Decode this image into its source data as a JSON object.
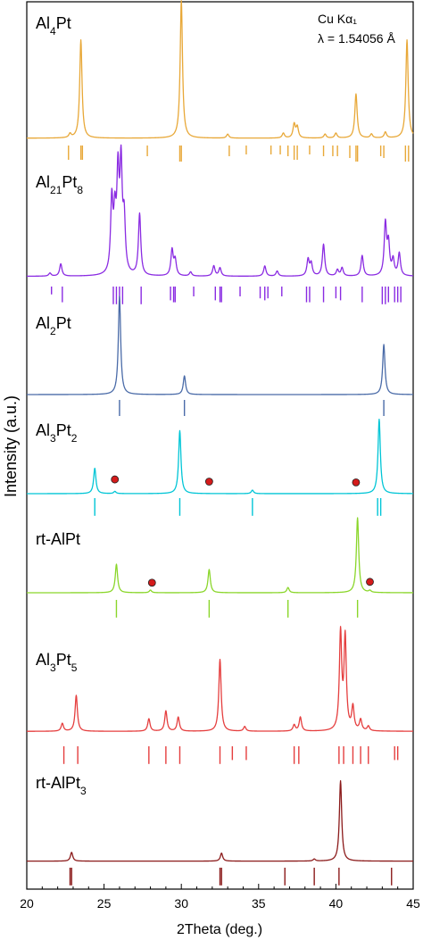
{
  "chart_data": {
    "type": "line",
    "xlabel": "2Theta (deg.)",
    "ylabel": "Intensity (a.u.)",
    "xlim": [
      20,
      45
    ],
    "x_ticks": [
      20,
      25,
      30,
      35,
      40,
      45
    ],
    "annotation": {
      "line1": "Cu Kα₁",
      "line2": "λ = 1.54056 Å"
    },
    "series": [
      {
        "name": "Al4Pt",
        "name_parts": [
          [
            "Al",
            ""
          ],
          [
            "4",
            "sub"
          ],
          [
            "Pt",
            ""
          ]
        ],
        "color": "#E8A838",
        "baseline": 0.2,
        "peaks": [
          [
            22.8,
            0.4
          ],
          [
            23.5,
            10
          ],
          [
            30.0,
            14
          ],
          [
            33.0,
            0.4
          ],
          [
            36.6,
            0.5
          ],
          [
            37.3,
            1.4
          ],
          [
            37.5,
            1.1
          ],
          [
            39.3,
            0.4
          ],
          [
            40.0,
            0.5
          ],
          [
            41.3,
            4.5
          ],
          [
            42.3,
            0.4
          ],
          [
            43.2,
            0.6
          ],
          [
            44.6,
            10
          ]
        ],
        "ticks": [
          [
            22.7,
            0.8
          ],
          [
            23.5,
            0.8
          ],
          [
            23.6,
            0.8
          ],
          [
            27.8,
            0.6
          ],
          [
            29.9,
            0.9
          ],
          [
            30.0,
            0.9
          ],
          [
            33.1,
            0.6
          ],
          [
            34.2,
            0.5
          ],
          [
            35.8,
            0.5
          ],
          [
            36.4,
            0.5
          ],
          [
            36.9,
            0.6
          ],
          [
            37.3,
            0.8
          ],
          [
            37.5,
            0.8
          ],
          [
            38.3,
            0.5
          ],
          [
            39.2,
            0.6
          ],
          [
            39.8,
            0.6
          ],
          [
            40.1,
            0.6
          ],
          [
            40.9,
            0.7
          ],
          [
            41.3,
            0.9
          ],
          [
            41.4,
            0.9
          ],
          [
            42.9,
            0.6
          ],
          [
            43.1,
            0.7
          ],
          [
            44.5,
            0.9
          ],
          [
            44.7,
            0.9
          ]
        ]
      },
      {
        "name": "Al21Pt8",
        "name_parts": [
          [
            "Al",
            ""
          ],
          [
            "21",
            "sub"
          ],
          [
            "Pt",
            ""
          ],
          [
            "8",
            "sub"
          ]
        ],
        "color": "#8A2BE2",
        "baseline": 0.3,
        "peaks": [
          [
            21.5,
            0.3
          ],
          [
            22.2,
            1.2
          ],
          [
            25.5,
            7
          ],
          [
            25.7,
            5
          ],
          [
            25.9,
            9
          ],
          [
            26.1,
            10
          ],
          [
            26.3,
            5
          ],
          [
            27.3,
            6
          ],
          [
            29.4,
            2.5
          ],
          [
            29.6,
            1.5
          ],
          [
            30.6,
            0.4
          ],
          [
            32.1,
            1
          ],
          [
            32.5,
            0.8
          ],
          [
            35.4,
            1
          ],
          [
            36.2,
            0.5
          ],
          [
            38.2,
            1.6
          ],
          [
            38.4,
            1.2
          ],
          [
            39.2,
            3.1
          ],
          [
            40.1,
            0.6
          ],
          [
            40.4,
            0.8
          ],
          [
            41.7,
            2
          ],
          [
            43.2,
            5
          ],
          [
            43.4,
            3
          ],
          [
            43.7,
            1.5
          ],
          [
            44.1,
            2.2
          ]
        ],
        "ticks": [
          [
            21.6,
            0.4
          ],
          [
            22.3,
            0.8
          ],
          [
            25.6,
            0.9
          ],
          [
            25.8,
            0.9
          ],
          [
            26.0,
            0.9
          ],
          [
            26.2,
            0.9
          ],
          [
            27.4,
            0.9
          ],
          [
            29.3,
            0.7
          ],
          [
            29.5,
            0.8
          ],
          [
            29.6,
            0.8
          ],
          [
            30.8,
            0.5
          ],
          [
            32.2,
            0.7
          ],
          [
            32.5,
            0.8
          ],
          [
            32.6,
            0.8
          ],
          [
            33.8,
            0.5
          ],
          [
            35.1,
            0.6
          ],
          [
            35.4,
            0.7
          ],
          [
            35.6,
            0.6
          ],
          [
            36.5,
            0.5
          ],
          [
            38.1,
            0.8
          ],
          [
            38.3,
            0.8
          ],
          [
            39.2,
            0.8
          ],
          [
            40.0,
            0.6
          ],
          [
            40.3,
            0.7
          ],
          [
            41.7,
            0.8
          ],
          [
            43.0,
            0.9
          ],
          [
            43.2,
            0.9
          ],
          [
            43.4,
            0.8
          ],
          [
            43.8,
            0.8
          ],
          [
            44.0,
            0.8
          ],
          [
            44.2,
            0.8
          ]
        ]
      },
      {
        "name": "Al2Pt",
        "name_parts": [
          [
            "Al",
            ""
          ],
          [
            "2",
            "sub"
          ],
          [
            "Pt",
            ""
          ]
        ],
        "color": "#4A6BA8",
        "baseline": 0.0,
        "peaks": [
          [
            26.0,
            10
          ],
          [
            30.2,
            1.9
          ],
          [
            43.1,
            5.1
          ]
        ],
        "ticks": [
          [
            26.0,
            0.9
          ],
          [
            30.2,
            0.9
          ],
          [
            43.1,
            0.9
          ]
        ]
      },
      {
        "name": "Al3Pt2",
        "name_parts": [
          [
            "Al",
            ""
          ],
          [
            "3",
            "sub"
          ],
          [
            "Pt",
            ""
          ],
          [
            "2",
            "sub"
          ]
        ],
        "color": "#00C5D6",
        "baseline": 0.0,
        "peaks": [
          [
            24.4,
            2.9
          ],
          [
            25.7,
            0.25
          ],
          [
            29.9,
            7.2
          ],
          [
            34.6,
            0.4
          ],
          [
            42.8,
            8.5
          ]
        ],
        "ticks": [
          [
            24.4,
            0.9
          ],
          [
            29.9,
            0.9
          ],
          [
            34.6,
            0.9
          ],
          [
            42.7,
            0.9
          ],
          [
            42.9,
            0.9
          ]
        ],
        "markers": [
          [
            25.7,
            0.95
          ],
          [
            31.8,
            0.95
          ],
          [
            41.3,
            0.85
          ]
        ]
      },
      {
        "name": "rt-AlPt",
        "name_parts": [
          [
            "rt-AlPt",
            ""
          ]
        ],
        "color": "#8AD62A",
        "baseline": 0.0,
        "peaks": [
          [
            25.8,
            3.8
          ],
          [
            28.0,
            0.35
          ],
          [
            31.8,
            3.1
          ],
          [
            36.9,
            0.7
          ],
          [
            41.4,
            10
          ],
          [
            42.2,
            0.25
          ]
        ],
        "ticks": [
          [
            25.8,
            0.9
          ],
          [
            31.8,
            0.9
          ],
          [
            36.9,
            0.9
          ],
          [
            41.4,
            0.9
          ]
        ],
        "markers": [
          [
            28.1,
            0.7
          ],
          [
            42.2,
            0.6
          ]
        ]
      },
      {
        "name": "Al3Pt5",
        "name_parts": [
          [
            "Al",
            ""
          ],
          [
            "3",
            "sub"
          ],
          [
            "Pt",
            ""
          ],
          [
            "5",
            "sub"
          ]
        ],
        "color": "#E53E3E",
        "baseline": 0.5,
        "peaks": [
          [
            22.3,
            0.5
          ],
          [
            23.2,
            2.3
          ],
          [
            27.9,
            0.8
          ],
          [
            29.0,
            1.3
          ],
          [
            29.8,
            0.9
          ],
          [
            32.5,
            4.6
          ],
          [
            34.1,
            0.3
          ],
          [
            37.3,
            0.4
          ],
          [
            37.7,
            0.9
          ],
          [
            40.3,
            6.2
          ],
          [
            40.6,
            5.9
          ],
          [
            41.1,
            1.5
          ],
          [
            41.6,
            0.7
          ],
          [
            42.1,
            0.3
          ]
        ],
        "ticks": [
          [
            22.4,
            0.9
          ],
          [
            23.3,
            0.9
          ],
          [
            27.9,
            0.9
          ],
          [
            29.0,
            0.9
          ],
          [
            29.9,
            0.9
          ],
          [
            32.5,
            0.9
          ],
          [
            33.3,
            0.7
          ],
          [
            34.2,
            0.7
          ],
          [
            37.3,
            0.9
          ],
          [
            37.6,
            0.9
          ],
          [
            40.2,
            0.9
          ],
          [
            40.5,
            0.9
          ],
          [
            41.1,
            0.9
          ],
          [
            41.6,
            0.9
          ],
          [
            42.1,
            0.9
          ],
          [
            43.8,
            0.7
          ],
          [
            44.0,
            0.7
          ]
        ]
      },
      {
        "name": "rt-AlPt3",
        "name_parts": [
          [
            "rt-AlPt",
            ""
          ],
          [
            "3",
            "sub"
          ]
        ],
        "color": "#8B1A1A",
        "baseline": 0.15,
        "peaks": [
          [
            22.9,
            1.1
          ],
          [
            32.6,
            1
          ],
          [
            38.6,
            0.25
          ],
          [
            40.3,
            10
          ]
        ],
        "ticks": [
          [
            22.8,
            0.9
          ],
          [
            22.9,
            0.9
          ],
          [
            32.5,
            0.9
          ],
          [
            32.6,
            0.9
          ],
          [
            36.7,
            0.9
          ],
          [
            38.6,
            0.9
          ],
          [
            40.2,
            0.9
          ],
          [
            43.6,
            0.9
          ]
        ]
      }
    ]
  }
}
